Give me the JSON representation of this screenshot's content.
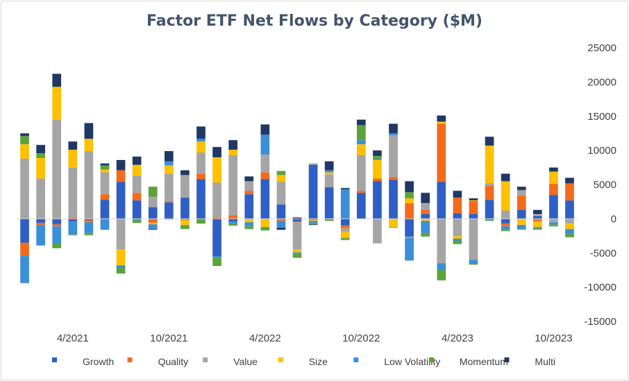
{
  "chart_data": {
    "type": "bar",
    "stacked": true,
    "title": "Factor ETF Net Flows by Category ($M)",
    "ylim": [
      -15000,
      25000
    ],
    "y_ticks": [
      25000,
      20000,
      15000,
      10000,
      5000,
      0,
      -5000,
      -10000,
      -15000
    ],
    "y_axis_position": "right",
    "grid": false,
    "legend_position": "bottom",
    "x_tick_labels": [
      {
        "index": 3,
        "label": "4/2021"
      },
      {
        "index": 9,
        "label": "10/2021"
      },
      {
        "index": 15,
        "label": "4/2022"
      },
      {
        "index": 21,
        "label": "10/2022"
      },
      {
        "index": 27,
        "label": "4/2023"
      },
      {
        "index": 33,
        "label": "10/2023"
      }
    ],
    "categories": [
      "1/2021",
      "2/2021",
      "3/2021",
      "4/2021",
      "5/2021",
      "6/2021",
      "7/2021",
      "8/2021",
      "9/2021",
      "10/2021",
      "11/2021",
      "12/2021",
      "1/2022",
      "2/2022",
      "3/2022",
      "4/2022",
      "5/2022",
      "6/2022",
      "7/2022",
      "8/2022",
      "9/2022",
      "10/2022",
      "11/2022",
      "12/2022",
      "1/2023",
      "2/2023",
      "3/2023",
      "4/2023",
      "5/2023",
      "6/2023",
      "7/2023",
      "8/2023",
      "9/2023",
      "10/2023",
      "11/2023"
    ],
    "colors": {
      "Growth": "#2f5fc4",
      "Quality": "#f26b1d",
      "Value": "#a5a5a5",
      "Size": "#ffc000",
      "Low Volatility": "#3b8fd9",
      "Momentum": "#5ba33a",
      "Multi": "#1f3864"
    },
    "series": [
      {
        "name": "Growth",
        "values": [
          -3500,
          -600,
          -800,
          -400,
          -200,
          2800,
          5400,
          2700,
          1700,
          2400,
          3100,
          5800,
          -5500,
          -400,
          3600,
          5800,
          2100,
          -400,
          7900,
          4600,
          -1000,
          3800,
          5500,
          5700,
          -2600,
          700,
          5400,
          800,
          700,
          2800,
          -700,
          1300,
          400,
          3500,
          2700
        ]
      },
      {
        "name": "Quality",
        "values": [
          -1900,
          -300,
          -300,
          200,
          -300,
          800,
          1700,
          1100,
          -600,
          200,
          -200,
          800,
          200,
          500,
          500,
          1000,
          -300,
          -100,
          -200,
          -100,
          -400,
          300,
          400,
          400,
          2300,
          600,
          8500,
          2300,
          1900,
          2000,
          -400,
          2100,
          -400,
          1600,
          2500
        ]
      },
      {
        "name": "Value",
        "values": [
          8800,
          5900,
          14500,
          7300,
          9900,
          3200,
          -4500,
          2500,
          1500,
          4000,
          3300,
          3100,
          5100,
          8800,
          1400,
          2600,
          3300,
          -4000,
          200,
          1900,
          -500,
          5200,
          -3600,
          6100,
          -200,
          1000,
          -6500,
          -2500,
          -6000,
          400,
          1200,
          800,
          300,
          -500,
          -700
        ]
      },
      {
        "name": "Size",
        "values": [
          2100,
          3000,
          4800,
          2600,
          1800,
          400,
          -2300,
          1600,
          -200,
          1200,
          -700,
          1600,
          3700,
          800,
          -500,
          -1200,
          1000,
          -400,
          -100,
          300,
          -900,
          1600,
          2700,
          -1200,
          700,
          -300,
          300,
          -400,
          100,
          5500,
          4300,
          -900,
          -800,
          1800,
          -800
        ]
      },
      {
        "name": "Low Volatility",
        "values": [
          -4000,
          -3000,
          -2500,
          -1900,
          -1600,
          -1600,
          -400,
          -200,
          -700,
          600,
          -100,
          400,
          -200,
          -300,
          -600,
          2900,
          -1000,
          -200,
          -300,
          300,
          4300,
          600,
          200,
          300,
          -3300,
          -1800,
          -1000,
          -300,
          -500,
          -200,
          -500,
          -600,
          -200,
          -300,
          -700
        ]
      },
      {
        "name": "Momentum",
        "values": [
          1200,
          700,
          -700,
          -100,
          -300,
          600,
          -800,
          -400,
          1500,
          -100,
          -500,
          -700,
          -1200,
          -300,
          -400,
          -500,
          600,
          -600,
          -200,
          -200,
          -300,
          2200,
          400,
          -100,
          900,
          -500,
          -1500,
          -500,
          -200,
          -100,
          -200,
          -100,
          -200,
          -300,
          -500
        ]
      },
      {
        "name": "Multi",
        "values": [
          400,
          1200,
          1900,
          1200,
          2300,
          300,
          1500,
          1200,
          -100,
          1500,
          700,
          1800,
          1500,
          1400,
          700,
          1500,
          -300,
          200,
          -100,
          1300,
          200,
          800,
          800,
          1400,
          1600,
          1500,
          900,
          1000,
          300,
          1300,
          1100,
          500,
          600,
          600,
          800
        ]
      }
    ]
  }
}
